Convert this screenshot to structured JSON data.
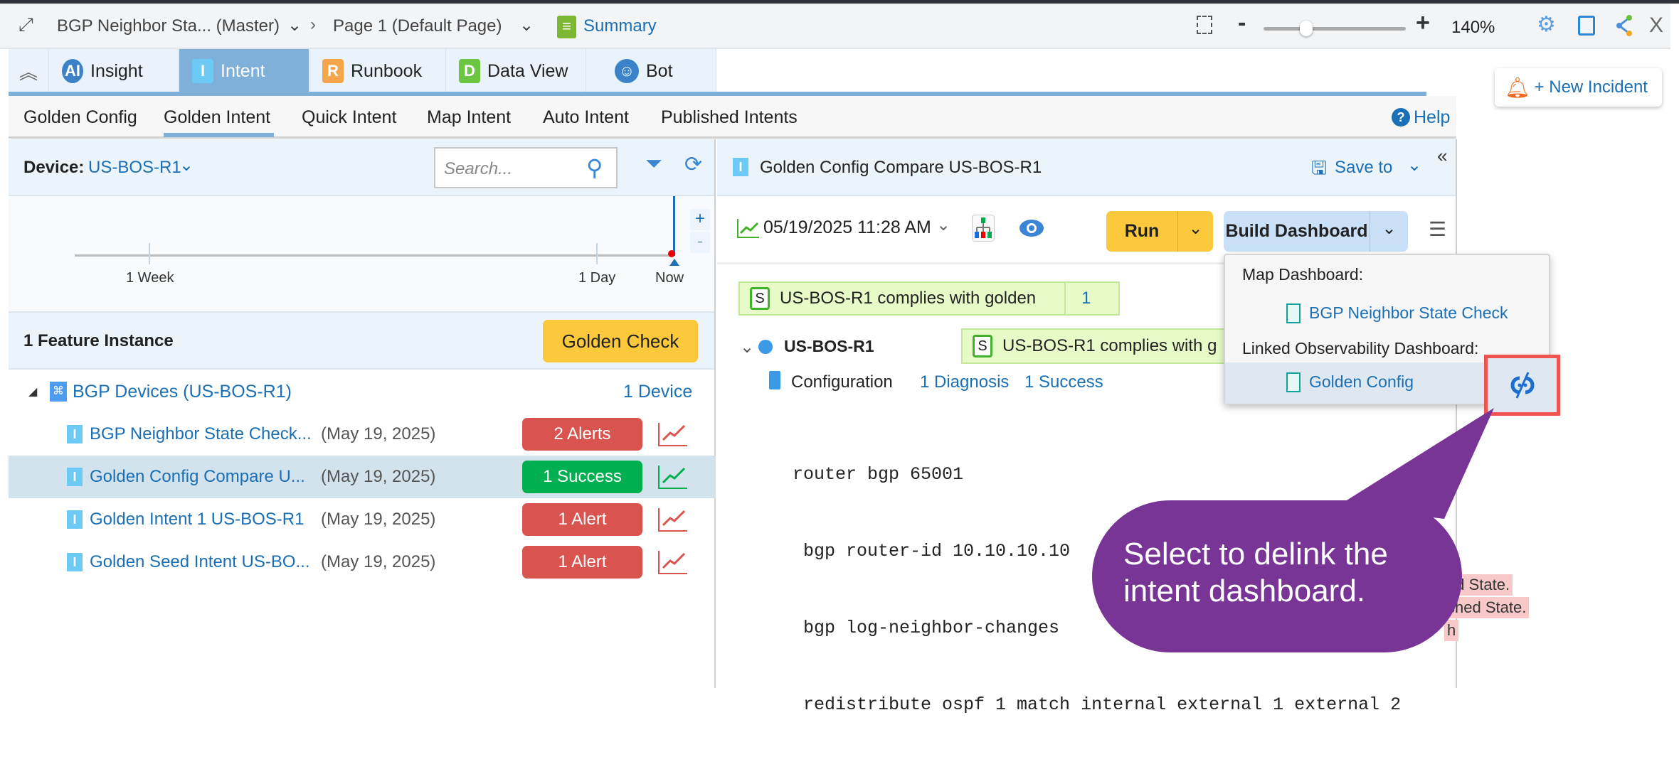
{
  "topbar": {
    "title": "BGP Neighbor Sta... (Master)",
    "page": "Page 1  (Default Page)",
    "summary": "Summary",
    "zoom_level": "140%",
    "zoom_minus": "-",
    "zoom_plus": "+",
    "zoom_slider_fraction": 0.3,
    "close": "X"
  },
  "tabs": [
    {
      "label": "Insight",
      "icon": "insight-ai-icon"
    },
    {
      "label": "Intent",
      "icon": "I",
      "active": true
    },
    {
      "label": "Runbook",
      "icon": "R"
    },
    {
      "label": "Data View",
      "icon": "D"
    },
    {
      "label": "Bot",
      "icon": "bot-icon"
    }
  ],
  "new_incident": "+ New Incident",
  "subtabs": [
    "Golden Config",
    "Golden Intent",
    "Quick Intent",
    "Map Intent",
    "Auto Intent",
    "Published Intents"
  ],
  "active_subtab": "Golden Intent",
  "help": "Help",
  "left": {
    "device_label": "Device:",
    "device_value": "US-BOS-R1",
    "search_placeholder": "Search...",
    "timeline": {
      "labels": [
        "1 Week",
        "1 Day",
        "Now"
      ],
      "zoom_in": "+",
      "zoom_out": "-"
    },
    "feature_count": "1 Feature Instance",
    "golden_check": "Golden Check",
    "group": {
      "label": "BGP Devices (US-BOS-R1)",
      "count": "1 Device"
    },
    "items": [
      {
        "name": "BGP Neighbor State Check...",
        "date": "(May 19, 2025)",
        "status": "2 Alerts",
        "type": "alert"
      },
      {
        "name": "Golden Config Compare U...",
        "date": "(May 19, 2025)",
        "status": "1 Success",
        "type": "success",
        "selected": true
      },
      {
        "name": "Golden Intent 1 US-BOS-R1",
        "date": "(May 19, 2025)",
        "status": "1 Alert",
        "type": "alert"
      },
      {
        "name": "Golden Seed Intent US-BO...",
        "date": "(May 19, 2025)",
        "status": "1 Alert",
        "type": "alert"
      }
    ]
  },
  "right": {
    "title": "Golden Config Compare US-BOS-R1",
    "save_to": "Save to",
    "timestamp": "05/19/2025 11:28 AM",
    "run": "Run",
    "build_dashboard": "Build Dashboard",
    "compliance": {
      "text": "US-BOS-R1 complies with golden",
      "count": "1",
      "badge": "S"
    },
    "device": "US-BOS-R1",
    "device_compliance": "US-BOS-R1 complies with g",
    "config_label": "Configuration",
    "diagnosis": "1 Diagnosis",
    "success": "1 Success",
    "code": [
      "router bgp 65001",
      " bgp router-id 10.10.10.10",
      " bgp log-neighbor-changes",
      " redistribute ospf 1 match internal external 1 external 2"
    ],
    "pink_fragments": [
      "ed State.",
      "shed State.",
      "h"
    ]
  },
  "menu": {
    "map_dashboard_label": "Map Dashboard:",
    "map_dashboard_item": "BGP Neighbor State Check",
    "linked_label": "Linked Observability Dashboard:",
    "linked_item": "Golden Config"
  },
  "callout": {
    "text_line1": "Select to delink the",
    "text_line2": "intent dashboard."
  },
  "colors": {
    "accent": "#1a6fb5",
    "alert": "#d9534f",
    "success": "#00b050",
    "golden_check": "#fcc93d",
    "callout": "#783596",
    "highlight_box": "#f0544f"
  }
}
